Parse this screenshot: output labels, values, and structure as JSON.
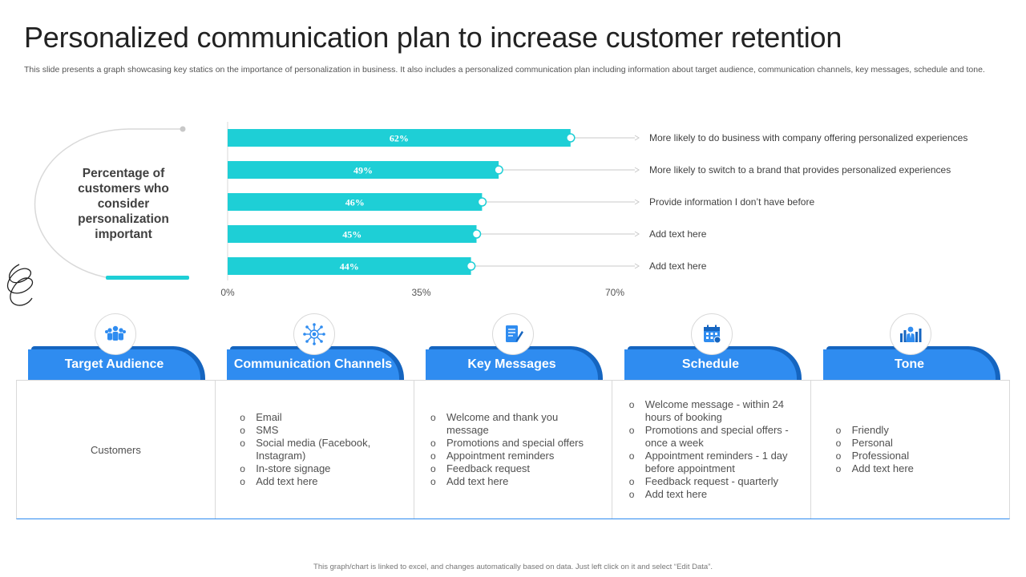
{
  "title": "Personalized  communication  plan  to  increase  customer  retention",
  "subtitle": "This slide presents a graph showcasing key statics on the importance of personalization in business. It also includes a personalized communication plan including information about target audience, communication channels, key messages, schedule and tone.",
  "lead_text": "Percentage of customers who consider personalization important",
  "colors": {
    "bar": "#1ecfd6",
    "tab": "#2f8cf0",
    "tab_dark": "#1565c0",
    "icon": "#2f8cf0"
  },
  "chart_data": {
    "type": "bar",
    "orientation": "horizontal",
    "values": [
      62,
      49,
      46,
      45,
      44
    ],
    "value_labels": [
      "62%",
      "49%",
      "46%",
      "45%",
      "44%"
    ],
    "descriptions": [
      "More likely to do business with company offering personalized experiences",
      "More likely to switch to a brand that provides personalized experiences",
      "Provide information I don’t have before",
      "Add text here",
      "Add text here"
    ],
    "xlim": [
      0,
      70
    ],
    "xticks": [
      0,
      35,
      70
    ],
    "xtick_labels": [
      "0%",
      "35%",
      "70%"
    ]
  },
  "columns": [
    {
      "header": "Target Audience",
      "icon": "group-icon",
      "text": "Customers"
    },
    {
      "header": "Communication Channels",
      "icon": "network-icon",
      "items": [
        "Email",
        "SMS",
        "Social media (Facebook, Instagram)",
        "In-store signage",
        "Add text here"
      ]
    },
    {
      "header": "Key Messages",
      "icon": "document-edit-icon",
      "items": [
        "Welcome and thank you message",
        "Promotions and special offers",
        "Appointment reminders",
        "Feedback request",
        "Add text here"
      ]
    },
    {
      "header": "Schedule",
      "icon": "calendar-icon",
      "items": [
        "Welcome message - within 24 hours of booking",
        "Promotions and special offers - once a week",
        "Appointment reminders - 1 day before appointment",
        "Feedback request - quarterly",
        "Add text here"
      ]
    },
    {
      "header": "Tone",
      "icon": "presenter-chart-icon",
      "items": [
        "Friendly",
        "Personal",
        "Professional",
        "Add text here"
      ]
    }
  ],
  "footer": "This graph/chart is linked to excel, and changes automatically based on data. Just left click on it and select “Edit Data”."
}
